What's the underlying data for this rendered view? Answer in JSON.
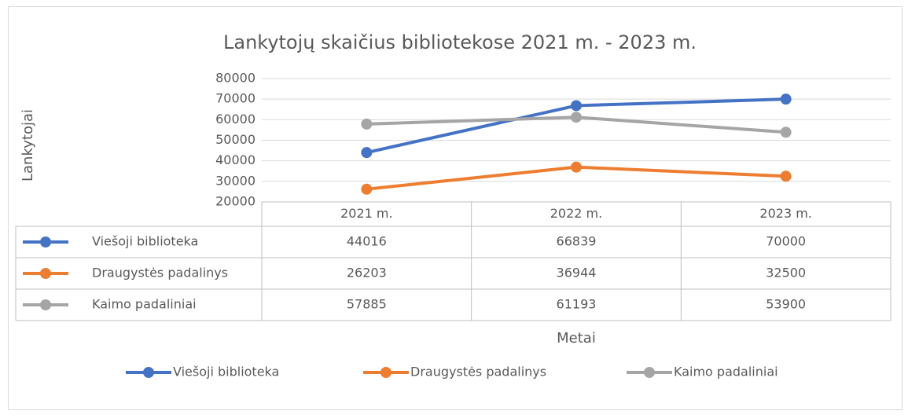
{
  "chart_data": {
    "type": "line",
    "title": "Lankytojų skaičius bibliotekose 2021 m. - 2023 m.",
    "y_label": "Lankytojai",
    "x_label": "Metai",
    "categories": [
      "2021 m.",
      "2022 m.",
      "2023 m."
    ],
    "series": [
      {
        "name": "Viešoji biblioteka",
        "color": "#4472c4",
        "values": [
          44016,
          66839,
          70000
        ]
      },
      {
        "name": "Draugystės padalinys",
        "color": "#ed7d31",
        "values": [
          26203,
          36944,
          32500
        ]
      },
      {
        "name": "Kaimo padaliniai",
        "color": "#a5a5a5",
        "values": [
          57885,
          61193,
          53900
        ]
      }
    ],
    "ylim": [
      20000,
      80000
    ],
    "yticks": [
      20000,
      30000,
      40000,
      50000,
      60000,
      70000,
      80000
    ],
    "grid": true,
    "legend": "bottom"
  }
}
